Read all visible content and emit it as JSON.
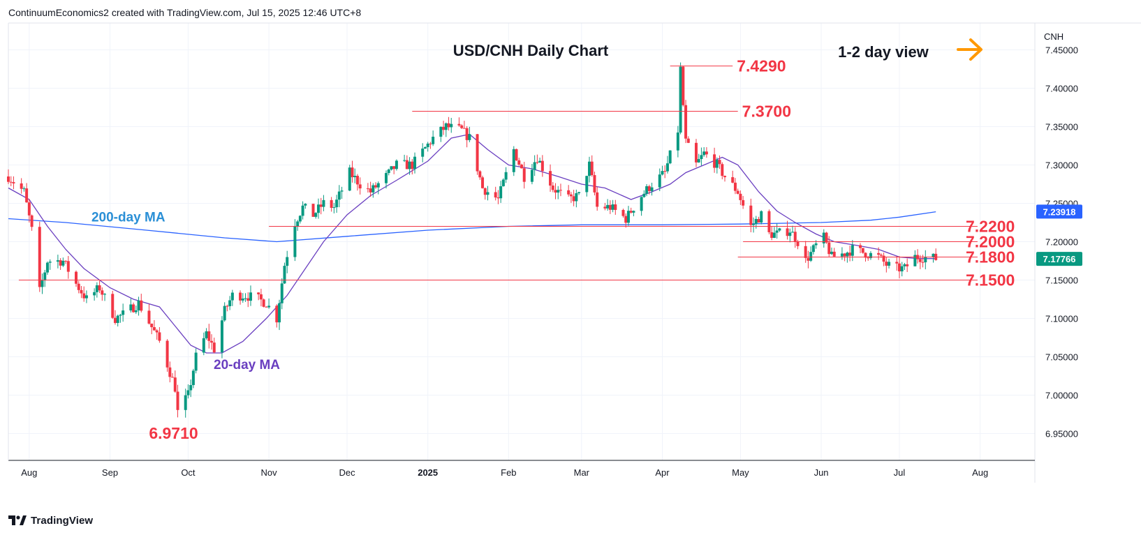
{
  "header": {
    "credit": "ContinuumEconomics2 created with TradingView.com, Jul 15, 2025 12:46 UTC+8"
  },
  "footer": {
    "brand": "TradingView",
    "logo_icon": "tradingview-logo-icon"
  },
  "colors": {
    "up": "#089981",
    "down": "#f23645",
    "ma20": "#6a3fc0",
    "ma200": "#2962ff",
    "level": "#f23645",
    "arrow": "#ff9800",
    "ma200_label": "#2a8fd6"
  },
  "chart_data": {
    "type": "candlestick",
    "title": "USD/CNH Daily Chart",
    "view_label": "1-2 day view",
    "view_arrow_icon": "arrow-right-icon",
    "currency_label": "CNH",
    "ylim": [
      6.915,
      7.485
    ],
    "y_ticks": [
      "7.45000",
      "7.40000",
      "7.35000",
      "7.30000",
      "7.25000",
      "7.20000",
      "7.15000",
      "7.10000",
      "7.05000",
      "7.00000",
      "6.95000"
    ],
    "x_range": [
      "2024-07-24",
      "2025-08-22"
    ],
    "x_ticks": [
      {
        "label": "Aug",
        "date": "2024-08-01",
        "bold": false
      },
      {
        "label": "Sep",
        "date": "2024-09-01",
        "bold": false
      },
      {
        "label": "Oct",
        "date": "2024-10-01",
        "bold": false
      },
      {
        "label": "Nov",
        "date": "2024-11-01",
        "bold": false
      },
      {
        "label": "Dec",
        "date": "2024-12-01",
        "bold": false
      },
      {
        "label": "2025",
        "date": "2025-01-01",
        "bold": true
      },
      {
        "label": "Feb",
        "date": "2025-02-01",
        "bold": false
      },
      {
        "label": "Mar",
        "date": "2025-03-01",
        "bold": false
      },
      {
        "label": "Apr",
        "date": "2025-04-01",
        "bold": false
      },
      {
        "label": "May",
        "date": "2025-05-01",
        "bold": false
      },
      {
        "label": "Jun",
        "date": "2025-06-01",
        "bold": false
      },
      {
        "label": "Jul",
        "date": "2025-07-01",
        "bold": false
      },
      {
        "label": "Aug",
        "date": "2025-08-01",
        "bold": false
      }
    ],
    "anchors": [
      [
        "2024-07-24",
        7.285
      ],
      [
        "2024-07-30",
        7.265
      ],
      [
        "2024-08-02",
        7.215
      ],
      [
        "2024-08-05",
        7.135
      ],
      [
        "2024-08-08",
        7.175
      ],
      [
        "2024-08-14",
        7.175
      ],
      [
        "2024-08-19",
        7.145
      ],
      [
        "2024-08-23",
        7.125
      ],
      [
        "2024-08-28",
        7.14
      ],
      [
        "2024-09-03",
        7.1
      ],
      [
        "2024-09-06",
        7.105
      ],
      [
        "2024-09-12",
        7.12
      ],
      [
        "2024-09-16",
        7.095
      ],
      [
        "2024-09-20",
        7.07
      ],
      [
        "2024-09-26",
        7.01
      ],
      [
        "2024-09-27",
        6.978
      ],
      [
        "2024-10-01",
        7.0
      ],
      [
        "2024-10-04",
        7.05
      ],
      [
        "2024-10-08",
        7.08
      ],
      [
        "2024-10-11",
        7.06
      ],
      [
        "2024-10-15",
        7.11
      ],
      [
        "2024-10-18",
        7.13
      ],
      [
        "2024-10-23",
        7.13
      ],
      [
        "2024-10-28",
        7.125
      ],
      [
        "2024-10-31",
        7.12
      ],
      [
        "2024-11-04",
        7.1
      ],
      [
        "2024-11-07",
        7.17
      ],
      [
        "2024-11-11",
        7.225
      ],
      [
        "2024-11-14",
        7.245
      ],
      [
        "2024-11-18",
        7.235
      ],
      [
        "2024-11-22",
        7.25
      ],
      [
        "2024-11-26",
        7.245
      ],
      [
        "2024-12-02",
        7.29
      ],
      [
        "2024-12-06",
        7.275
      ],
      [
        "2024-12-10",
        7.265
      ],
      [
        "2024-12-16",
        7.285
      ],
      [
        "2024-12-20",
        7.3
      ],
      [
        "2024-12-26",
        7.3
      ],
      [
        "2025-01-03",
        7.335
      ],
      [
        "2025-01-08",
        7.35
      ],
      [
        "2025-01-14",
        7.345
      ],
      [
        "2025-01-17",
        7.335
      ],
      [
        "2025-01-22",
        7.27
      ],
      [
        "2025-01-28",
        7.255
      ],
      [
        "2025-02-03",
        7.32
      ],
      [
        "2025-02-07",
        7.285
      ],
      [
        "2025-02-12",
        7.31
      ],
      [
        "2025-02-18",
        7.27
      ],
      [
        "2025-02-24",
        7.255
      ],
      [
        "2025-02-28",
        7.26
      ],
      [
        "2025-03-04",
        7.3
      ],
      [
        "2025-03-07",
        7.245
      ],
      [
        "2025-03-12",
        7.245
      ],
      [
        "2025-03-18",
        7.23
      ],
      [
        "2025-03-24",
        7.26
      ],
      [
        "2025-03-28",
        7.275
      ],
      [
        "2025-04-02",
        7.29
      ],
      [
        "2025-04-07",
        7.345
      ],
      [
        "2025-04-08",
        7.425
      ],
      [
        "2025-04-10",
        7.33
      ],
      [
        "2025-04-14",
        7.3
      ],
      [
        "2025-04-17",
        7.315
      ],
      [
        "2025-04-22",
        7.3
      ],
      [
        "2025-04-25",
        7.285
      ],
      [
        "2025-04-30",
        7.265
      ],
      [
        "2025-05-05",
        7.22
      ],
      [
        "2025-05-09",
        7.235
      ],
      [
        "2025-05-12",
        7.21
      ],
      [
        "2025-05-15",
        7.21
      ],
      [
        "2025-05-20",
        7.215
      ],
      [
        "2025-05-23",
        7.2
      ],
      [
        "2025-05-26",
        7.175
      ],
      [
        "2025-05-30",
        7.195
      ],
      [
        "2025-06-02",
        7.205
      ],
      [
        "2025-06-05",
        7.18
      ],
      [
        "2025-06-10",
        7.185
      ],
      [
        "2025-06-13",
        7.19
      ],
      [
        "2025-06-18",
        7.185
      ],
      [
        "2025-06-23",
        7.18
      ],
      [
        "2025-06-26",
        7.17
      ],
      [
        "2025-06-30",
        7.165
      ],
      [
        "2025-07-03",
        7.165
      ],
      [
        "2025-07-07",
        7.18
      ],
      [
        "2025-07-10",
        7.18
      ],
      [
        "2025-07-15",
        7.178
      ]
    ],
    "ma20": [
      [
        "2024-07-24",
        7.27
      ],
      [
        "2024-08-01",
        7.255
      ],
      [
        "2024-08-08",
        7.22
      ],
      [
        "2024-08-15",
        7.19
      ],
      [
        "2024-08-22",
        7.165
      ],
      [
        "2024-09-01",
        7.14
      ],
      [
        "2024-09-10",
        7.125
      ],
      [
        "2024-09-20",
        7.115
      ],
      [
        "2024-09-26",
        7.09
      ],
      [
        "2024-10-02",
        7.065
      ],
      [
        "2024-10-08",
        7.055
      ],
      [
        "2024-10-14",
        7.055
      ],
      [
        "2024-10-22",
        7.07
      ],
      [
        "2024-10-31",
        7.1
      ],
      [
        "2024-11-08",
        7.13
      ],
      [
        "2024-11-15",
        7.165
      ],
      [
        "2024-11-22",
        7.2
      ],
      [
        "2024-12-01",
        7.235
      ],
      [
        "2024-12-10",
        7.26
      ],
      [
        "2024-12-20",
        7.28
      ],
      [
        "2025-01-01",
        7.305
      ],
      [
        "2025-01-10",
        7.335
      ],
      [
        "2025-01-17",
        7.34
      ],
      [
        "2025-01-24",
        7.32
      ],
      [
        "2025-02-01",
        7.3
      ],
      [
        "2025-02-10",
        7.295
      ],
      [
        "2025-02-20",
        7.285
      ],
      [
        "2025-03-01",
        7.275
      ],
      [
        "2025-03-10",
        7.27
      ],
      [
        "2025-03-20",
        7.255
      ],
      [
        "2025-03-28",
        7.265
      ],
      [
        "2025-04-04",
        7.275
      ],
      [
        "2025-04-10",
        7.29
      ],
      [
        "2025-04-17",
        7.3
      ],
      [
        "2025-04-24",
        7.31
      ],
      [
        "2025-04-30",
        7.3
      ],
      [
        "2025-05-08",
        7.265
      ],
      [
        "2025-05-15",
        7.24
      ],
      [
        "2025-05-22",
        7.225
      ],
      [
        "2025-05-30",
        7.21
      ],
      [
        "2025-06-06",
        7.2
      ],
      [
        "2025-06-15",
        7.195
      ],
      [
        "2025-06-23",
        7.19
      ],
      [
        "2025-07-01",
        7.18
      ],
      [
        "2025-07-08",
        7.178
      ],
      [
        "2025-07-15",
        7.178
      ]
    ],
    "ma200": [
      [
        "2024-07-24",
        7.23
      ],
      [
        "2024-08-15",
        7.225
      ],
      [
        "2024-09-15",
        7.215
      ],
      [
        "2024-10-15",
        7.205
      ],
      [
        "2024-11-04",
        7.2
      ],
      [
        "2024-12-01",
        7.207
      ],
      [
        "2025-01-01",
        7.215
      ],
      [
        "2025-02-01",
        7.22
      ],
      [
        "2025-03-01",
        7.222
      ],
      [
        "2025-04-01",
        7.222
      ],
      [
        "2025-05-01",
        7.223
      ],
      [
        "2025-06-01",
        7.225
      ],
      [
        "2025-06-20",
        7.228
      ],
      [
        "2025-07-01",
        7.232
      ],
      [
        "2025-07-15",
        7.239
      ]
    ],
    "levels": [
      {
        "value": 7.429,
        "label": "7.4290",
        "from": "2025-04-04",
        "to": "2025-04-28",
        "label_pos": "right-of-line"
      },
      {
        "value": 7.37,
        "label": "7.3700",
        "from": "2024-12-26",
        "to": "2025-04-30",
        "label_pos": "right-of-line"
      },
      {
        "value": 7.22,
        "label": "7.2200",
        "from": "2024-11-01",
        "to": "2025-07-31",
        "label_pos": "right"
      },
      {
        "value": 7.2,
        "label": "7.2000",
        "from": "2025-05-02",
        "to": "2025-07-31",
        "label_pos": "right"
      },
      {
        "value": 7.18,
        "label": "7.1800",
        "from": "2025-04-30",
        "to": "2025-07-31",
        "label_pos": "right"
      },
      {
        "value": 7.15,
        "label": "7.1500",
        "from": "2024-07-28",
        "to": "2025-07-31",
        "label_pos": "right"
      }
    ],
    "low_label": {
      "value": 6.971,
      "label": "6.9710",
      "date": "2024-09-27"
    },
    "ma20_label": {
      "label": "20-day MA",
      "date": "2024-10-23",
      "value": 7.045
    },
    "ma200_label": {
      "label": "200-day MA",
      "date": "2024-08-31",
      "value": 7.228
    },
    "price_tags": [
      {
        "label": "7.23918",
        "value": 7.23918,
        "color": "#2962ff"
      },
      {
        "label": "7.17766",
        "value": 7.17766,
        "color": "#089981"
      }
    ]
  }
}
